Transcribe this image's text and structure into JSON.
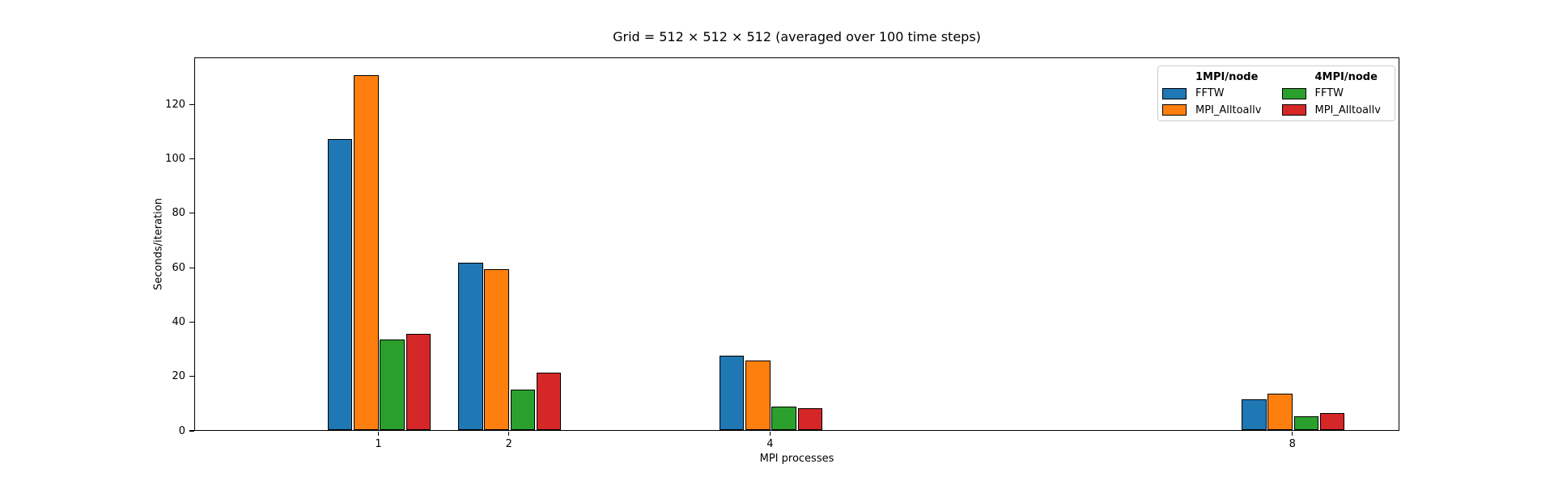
{
  "chart_data": {
    "type": "bar",
    "title": "Grid = 512 × 512 × 512 (averaged over 100 time steps)",
    "xlabel": "MPI processes",
    "ylabel": "Seconds/iteration",
    "categories": [
      "1",
      "2",
      "4",
      "8"
    ],
    "x_positions": [
      1,
      2,
      4,
      8
    ],
    "series": [
      {
        "id": "fftw-1mpi",
        "name": "FFTW",
        "node_config": "1MPI/node",
        "color": "#1f77b4",
        "values": [
          107.0,
          61.5,
          27.3,
          11.3
        ]
      },
      {
        "id": "alltoallv-1mpi",
        "name": "MPI_Alltoallv",
        "node_config": "1MPI/node",
        "color": "#ff7f0e",
        "values": [
          130.5,
          59.0,
          25.7,
          13.3
        ]
      },
      {
        "id": "fftw-4mpi",
        "name": "FFTW",
        "node_config": "4MPI/node",
        "color": "#2ca02c",
        "values": [
          33.3,
          14.8,
          8.6,
          5.0
        ]
      },
      {
        "id": "alltoallv-4mpi",
        "name": "MPI_Alltoallv",
        "node_config": "4MPI/node",
        "color": "#d62728",
        "values": [
          35.3,
          21.0,
          8.0,
          6.3
        ]
      }
    ],
    "yticks": [
      0,
      20,
      40,
      60,
      80,
      100,
      120
    ],
    "ylim": [
      0,
      137.3
    ],
    "xlim": [
      -0.41,
      8.82
    ],
    "bar_width_units": 0.19,
    "bar_step_units": 0.2,
    "grid": "off",
    "legend": {
      "position": "upper right",
      "columns": [
        {
          "header": "1MPI/node",
          "entries": [
            {
              "label": "FFTW",
              "color": "#1f77b4"
            },
            {
              "label": "MPI_Alltoallv",
              "color": "#ff7f0e"
            }
          ]
        },
        {
          "header": "4MPI/node",
          "entries": [
            {
              "label": "FFTW",
              "color": "#2ca02c"
            },
            {
              "label": "MPI_Alltoallv",
              "color": "#d62728"
            }
          ]
        }
      ]
    },
    "colors": {
      "background": "#ffffff",
      "spine": "#000000",
      "text": "#000000",
      "legend_border": "#cccccc"
    }
  }
}
